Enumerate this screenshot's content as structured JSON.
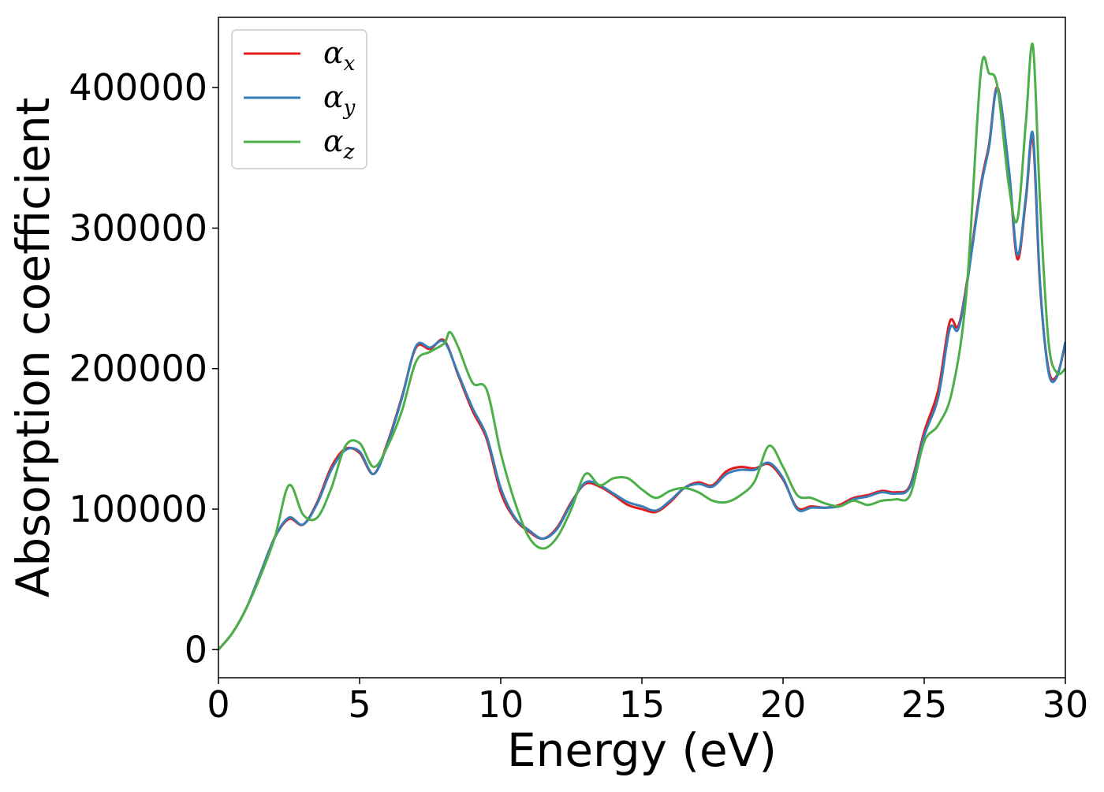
{
  "chart_data": {
    "type": "line",
    "xlabel": "Energy (eV)",
    "ylabel": "Absorption coefficient",
    "xlim": [
      0,
      30
    ],
    "ylim": [
      -20000,
      450000
    ],
    "xticks": [
      0,
      5,
      10,
      15,
      20,
      25,
      30
    ],
    "yticks": [
      0,
      100000,
      200000,
      300000,
      400000
    ],
    "grid": false,
    "legend": {
      "position": "top-left"
    },
    "series": [
      {
        "name": "α_x",
        "label_base": "α",
        "label_sub": "x",
        "color": "#e41a1c",
        "x": [
          0,
          0.5,
          1,
          1.5,
          2,
          2.5,
          3,
          3.5,
          4,
          4.5,
          5,
          5.5,
          6,
          6.5,
          7,
          7.5,
          8,
          8.5,
          9,
          9.5,
          10,
          10.5,
          11,
          11.5,
          12,
          12.5,
          13,
          13.5,
          14,
          14.5,
          15,
          15.5,
          16,
          16.5,
          17,
          17.5,
          18,
          18.5,
          19,
          19.5,
          20,
          20.5,
          21,
          21.5,
          22,
          22.5,
          23,
          23.5,
          24,
          24.5,
          25,
          25.5,
          25.9,
          26.2,
          26.5,
          27,
          27.3,
          27.6,
          28,
          28.3,
          28.6,
          28.85,
          29.1,
          29.4,
          29.7,
          30
        ],
        "y": [
          0,
          12000,
          30000,
          55000,
          80000,
          93000,
          89000,
          105000,
          130000,
          143000,
          140000,
          125000,
          148000,
          180000,
          215000,
          214000,
          220000,
          195000,
          170000,
          150000,
          112000,
          93000,
          84000,
          79000,
          87000,
          105000,
          118000,
          116000,
          110000,
          103000,
          100000,
          98000,
          105000,
          115000,
          119000,
          117000,
          127000,
          130000,
          129000,
          132000,
          121000,
          101000,
          102000,
          101000,
          103000,
          108000,
          110000,
          113000,
          112000,
          117000,
          155000,
          185000,
          233000,
          230000,
          260000,
          330000,
          360000,
          400000,
          340000,
          278000,
          320000,
          363000,
          260000,
          200000,
          195000,
          218000
        ]
      },
      {
        "name": "α_y",
        "label_base": "α",
        "label_sub": "y",
        "color": "#377eb8",
        "x": [
          0,
          0.5,
          1,
          1.5,
          2,
          2.5,
          3,
          3.5,
          4,
          4.5,
          5,
          5.5,
          6,
          6.5,
          7,
          7.5,
          8,
          8.5,
          9,
          9.5,
          10,
          10.5,
          11,
          11.5,
          12,
          12.5,
          13,
          13.5,
          14,
          14.5,
          15,
          15.5,
          16,
          16.5,
          17,
          17.5,
          18,
          18.5,
          19,
          19.5,
          20,
          20.5,
          21,
          21.5,
          22,
          22.5,
          23,
          23.5,
          24,
          24.5,
          25,
          25.5,
          25.9,
          26.2,
          26.5,
          27,
          27.3,
          27.6,
          28,
          28.3,
          28.6,
          28.85,
          29.1,
          29.4,
          29.7,
          30
        ],
        "y": [
          0,
          12000,
          30000,
          55000,
          80000,
          94000,
          89000,
          104000,
          128000,
          142000,
          141000,
          125000,
          147000,
          179000,
          216000,
          215000,
          219000,
          196000,
          172000,
          152000,
          115000,
          94000,
          85000,
          79000,
          86000,
          104000,
          119000,
          117000,
          111000,
          105000,
          102000,
          99000,
          106000,
          115000,
          118000,
          116000,
          125000,
          128000,
          128000,
          133000,
          122000,
          100000,
          101000,
          101000,
          102000,
          107000,
          109000,
          112000,
          111000,
          116000,
          152000,
          180000,
          228000,
          228000,
          258000,
          328000,
          358000,
          399000,
          342000,
          281000,
          322000,
          367000,
          262000,
          198000,
          194000,
          219000
        ]
      },
      {
        "name": "α_z",
        "label_base": "α",
        "label_sub": "z",
        "color": "#4daf4a",
        "x": [
          0,
          0.5,
          1,
          1.5,
          2,
          2.5,
          3,
          3.5,
          4,
          4.5,
          5,
          5.5,
          6,
          6.5,
          7,
          7.5,
          8,
          8.2,
          8.5,
          9,
          9.5,
          10,
          10.5,
          11,
          11.5,
          12,
          12.5,
          13,
          13.5,
          14,
          14.5,
          15,
          15.5,
          16,
          16.5,
          17,
          17.5,
          18,
          18.5,
          19,
          19.5,
          20,
          20.5,
          21,
          21.5,
          22,
          22.5,
          23,
          23.5,
          24,
          24.5,
          25,
          25.5,
          26,
          26.5,
          27,
          27.3,
          27.6,
          28,
          28.3,
          28.6,
          28.85,
          29.1,
          29.4,
          29.7,
          30
        ],
        "y": [
          0,
          12000,
          30000,
          53000,
          80000,
          117000,
          96000,
          94000,
          115000,
          145000,
          147000,
          130000,
          145000,
          170000,
          205000,
          212000,
          218000,
          226000,
          215000,
          190000,
          185000,
          140000,
          105000,
          80000,
          72000,
          80000,
          100000,
          125000,
          117000,
          122000,
          122000,
          114000,
          108000,
          113000,
          115000,
          112000,
          106000,
          105000,
          110000,
          120000,
          145000,
          130000,
          110000,
          108000,
          104000,
          102000,
          106000,
          103000,
          106000,
          107000,
          110000,
          148000,
          160000,
          185000,
          255000,
          410000,
          410000,
          400000,
          330000,
          306000,
          375000,
          430000,
          320000,
          220000,
          197000,
          200000
        ]
      }
    ]
  }
}
